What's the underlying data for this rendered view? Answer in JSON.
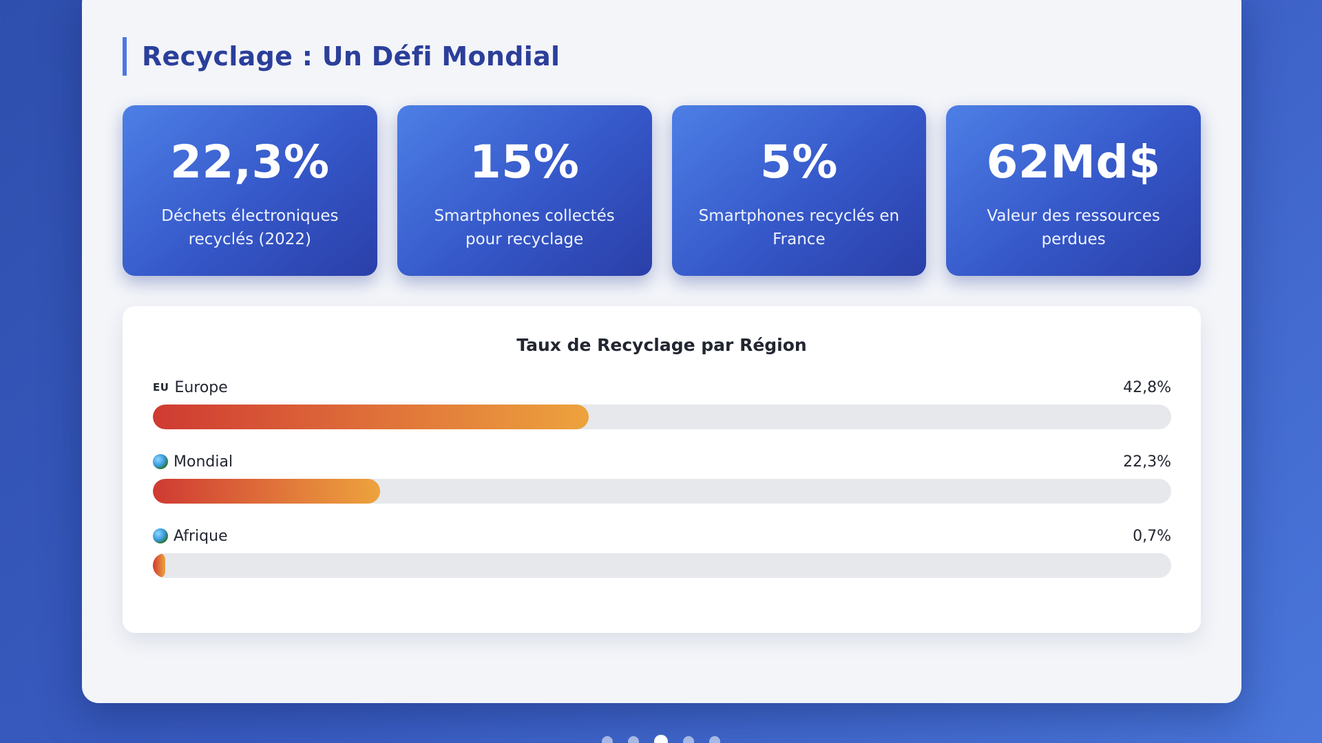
{
  "slide": {
    "title": "Recyclage : Un Défi Mondial"
  },
  "stats": [
    {
      "value": "22,3%",
      "label": "Déchets électroniques recyclés (2022)"
    },
    {
      "value": "15%",
      "label": "Smartphones collectés pour recyclage"
    },
    {
      "value": "5%",
      "label": "Smartphones recyclés en France"
    },
    {
      "value": "62Md$",
      "label": "Valeur des ressources perdues"
    }
  ],
  "chart_data": {
    "type": "bar",
    "title": "Taux de Recyclage par Région",
    "categories": [
      "Europe",
      "Mondial",
      "Afrique"
    ],
    "values": [
      42.8,
      22.3,
      0.7
    ],
    "value_labels": [
      "42,8%",
      "22,3%",
      "0,7%"
    ],
    "icons": [
      "eu-flag-icon",
      "globe-icon",
      "globe-icon"
    ],
    "flag_text": "EU",
    "ylim": [
      0,
      100
    ],
    "colors": {
      "start": "#cf3a32",
      "end": "#eda33d",
      "track": "#e6e8ec"
    }
  },
  "pagination": {
    "count": 5,
    "active_index": 2
  }
}
